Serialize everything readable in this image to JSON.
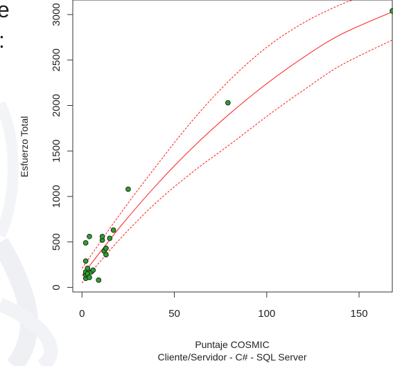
{
  "slide_fragments": {
    "top_char": "e",
    "second_char": ":"
  },
  "chart_data": {
    "type": "scatter",
    "xlabel": "Puntaje COSMIC",
    "xlabel2": "Cliente/Servidor - C# - SQL Server",
    "ylabel": "Esfuerzo Total",
    "xlim": [
      -5,
      168
    ],
    "ylim": [
      -50,
      3160
    ],
    "x_ticks": [
      0,
      50,
      100,
      150
    ],
    "y_ticks": [
      0,
      500,
      1000,
      1500,
      2000,
      2500,
      3000
    ],
    "grid": false,
    "colors": {
      "points": "#2ca02c",
      "curves": "#ff2a2a"
    },
    "points": [
      {
        "x": 2,
        "y": 100
      },
      {
        "x": 2,
        "y": 140
      },
      {
        "x": 2,
        "y": 170
      },
      {
        "x": 2,
        "y": 290
      },
      {
        "x": 2,
        "y": 490
      },
      {
        "x": 3,
        "y": 150
      },
      {
        "x": 3,
        "y": 210
      },
      {
        "x": 4,
        "y": 110
      },
      {
        "x": 4,
        "y": 560
      },
      {
        "x": 5,
        "y": 170
      },
      {
        "x": 6,
        "y": 190
      },
      {
        "x": 9,
        "y": 80
      },
      {
        "x": 11,
        "y": 520
      },
      {
        "x": 11,
        "y": 560
      },
      {
        "x": 12,
        "y": 400
      },
      {
        "x": 13,
        "y": 360
      },
      {
        "x": 13,
        "y": 430
      },
      {
        "x": 15,
        "y": 540
      },
      {
        "x": 17,
        "y": 630
      },
      {
        "x": 25,
        "y": 1080
      },
      {
        "x": 79,
        "y": 2030
      },
      {
        "x": 168,
        "y": 3040
      }
    ],
    "series": [
      {
        "style": "solid",
        "points": [
          [
            0,
            130
          ],
          [
            20,
            650
          ],
          [
            40,
            1120
          ],
          [
            60,
            1540
          ],
          [
            80,
            1910
          ],
          [
            100,
            2240
          ],
          [
            120,
            2530
          ],
          [
            140,
            2780
          ],
          [
            168,
            3030
          ]
        ]
      },
      {
        "style": "dashed",
        "points": [
          [
            0,
            210
          ],
          [
            20,
            790
          ],
          [
            40,
            1330
          ],
          [
            60,
            1840
          ],
          [
            80,
            2280
          ],
          [
            100,
            2640
          ],
          [
            120,
            2910
          ],
          [
            140,
            3110
          ],
          [
            150,
            3180
          ]
        ]
      },
      {
        "style": "dashed",
        "points": [
          [
            0,
            50
          ],
          [
            20,
            520
          ],
          [
            40,
            930
          ],
          [
            60,
            1270
          ],
          [
            80,
            1570
          ],
          [
            100,
            1880
          ],
          [
            120,
            2170
          ],
          [
            140,
            2440
          ],
          [
            168,
            2720
          ]
        ]
      }
    ]
  }
}
